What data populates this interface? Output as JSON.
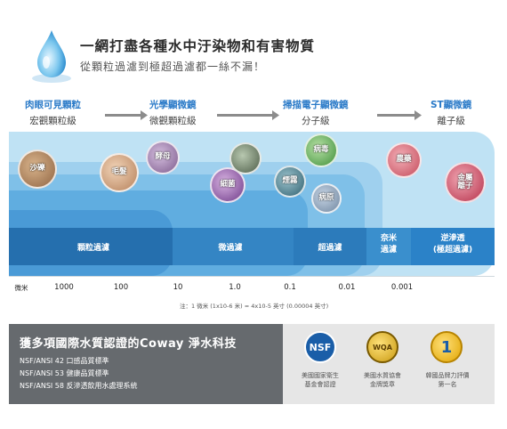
{
  "header": {
    "title": "一網打盡各種水中汙染物和有害物質",
    "subtitle": "從顆粒過濾到極超過濾都一絲不漏！"
  },
  "scale": [
    {
      "line1": "肉眼可見顆粒",
      "line2": "宏觀顆粒級"
    },
    {
      "line1": "光學顯微鏡",
      "line2": "微觀顆粒級"
    },
    {
      "line1": "掃描電子顯微鏡",
      "line2": "分子級"
    },
    {
      "line1": "ST顯微鏡",
      "line2": "離子級"
    }
  ],
  "contaminants": {
    "sand": "沙礫",
    "hair": "毛髮",
    "yeast": "酵母",
    "bacteria": "細菌",
    "virus": "病毒",
    "pesticide": "農藥",
    "smoke": "煙霧",
    "pathogen": "病原",
    "metal_line1": "金屬",
    "metal_line2": "離子"
  },
  "filters": {
    "particle": "顆粒過濾",
    "micro": "微過濾",
    "ultra": "超過濾",
    "nano_line1": "奈米",
    "nano_line2": "過濾",
    "ro_line1": "逆滲透",
    "ro_line2": "(極超過濾)"
  },
  "axis": {
    "unit": "微米",
    "ticks": [
      "1000",
      "100",
      "10",
      "1.0",
      "0.1",
      "0.01",
      "0.001"
    ]
  },
  "note": "注：1 微米 (1x10-6 米) = 4x10-5 英寸 (0.00004 英寸)",
  "certs": {
    "title": "獲多項國際水質認證的Coway 淨水科技",
    "items": [
      "NSF/ANSI 42 口感品質標準",
      "NSF/ANSI 53 健康品質標準",
      "NSF/ANSI 58 反滲透飲用水處理系統"
    ],
    "badges": [
      {
        "logo": "NSF",
        "cap1": "美國國家衛生",
        "cap2": "基金會認證"
      },
      {
        "logo": "WQA",
        "cap1": "美國水質協會",
        "cap2": "金牌獎章"
      },
      {
        "logo": "1",
        "cap1": "韓國品牌力評價",
        "cap2": "第一名"
      }
    ]
  },
  "colors": {
    "band_light": "#a9d7ef",
    "band_mid": "#6fb8e4",
    "band_dark": "#2f7fbf",
    "label_blue": "#2a7ac8"
  }
}
